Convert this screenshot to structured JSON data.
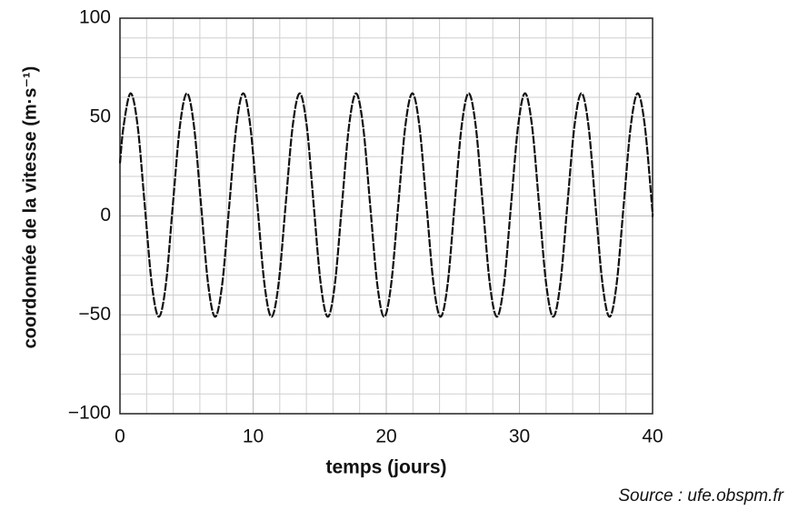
{
  "chart_data": {
    "type": "line",
    "x_label": "temps (jours)",
    "y_label": "coordonnée de la vitesse (m·s⁻¹)",
    "source": "Source : ufe.obspm.fr",
    "x": [
      0,
      0.27,
      0.8,
      1.33,
      1.86,
      2.39,
      2.92,
      3.45,
      3.97,
      4.5,
      5.03,
      5.56,
      6.09,
      6.62,
      7.15,
      7.68,
      8.21,
      8.74,
      9.26,
      9.79,
      10.32,
      10.85,
      11.38,
      11.91,
      12.44,
      12.97,
      13.5,
      14.03,
      14.55,
      15.08,
      15.61,
      16.14,
      16.67,
      17.2,
      17.73,
      18.26,
      18.79,
      19.32,
      19.84,
      20.37,
      20.9,
      21.43,
      21.96,
      22.49,
      23.02,
      23.55,
      24.08,
      24.61,
      25.13,
      25.66,
      26.19,
      26.72,
      27.25,
      27.78,
      28.31,
      28.84,
      29.37,
      29.9,
      30.42,
      30.95,
      31.48,
      32.01,
      32.54,
      33.07,
      33.6,
      34.13,
      34.66,
      35.19,
      35.71,
      36.24,
      36.77,
      37.3,
      37.83,
      38.36,
      38.89,
      39.42,
      39.95,
      40
    ],
    "series": [
      {
        "color": "#111111",
        "values": [
          26.6,
          45.4,
          62,
          45.4,
          5.5,
          -34.4,
          -51,
          -34.4,
          5.5,
          45.4,
          62,
          45.4,
          5.5,
          -34.4,
          -51,
          -34.4,
          5.5,
          45.4,
          62,
          45.4,
          5.5,
          -34.4,
          -51,
          -34.4,
          5.5,
          45.4,
          62,
          45.4,
          5.5,
          -34.4,
          -51,
          -34.4,
          5.5,
          45.4,
          62,
          45.4,
          5.5,
          -34.4,
          -51,
          -34.4,
          5.5,
          45.4,
          62,
          45.4,
          5.5,
          -34.4,
          -51,
          -34.4,
          5.5,
          45.4,
          62,
          45.4,
          5.5,
          -34.4,
          -51,
          -34.4,
          5.5,
          45.4,
          62,
          45.4,
          5.5,
          -34.4,
          -51,
          -34.4,
          5.5,
          45.4,
          62,
          45.4,
          5.5,
          -34.4,
          -51,
          -34.4,
          5.5,
          45.4,
          62,
          45.4,
          5.5,
          -0.5
        ]
      }
    ],
    "xlim": [
      0,
      40
    ],
    "xticks": [
      0,
      10,
      20,
      30,
      40
    ],
    "ylim": [
      -100,
      100
    ],
    "yticks": [
      {
        "value": -100,
        "label": "−100"
      },
      {
        "value": -50,
        "label": "−50"
      },
      0,
      50,
      100
    ],
    "grid": true
  }
}
